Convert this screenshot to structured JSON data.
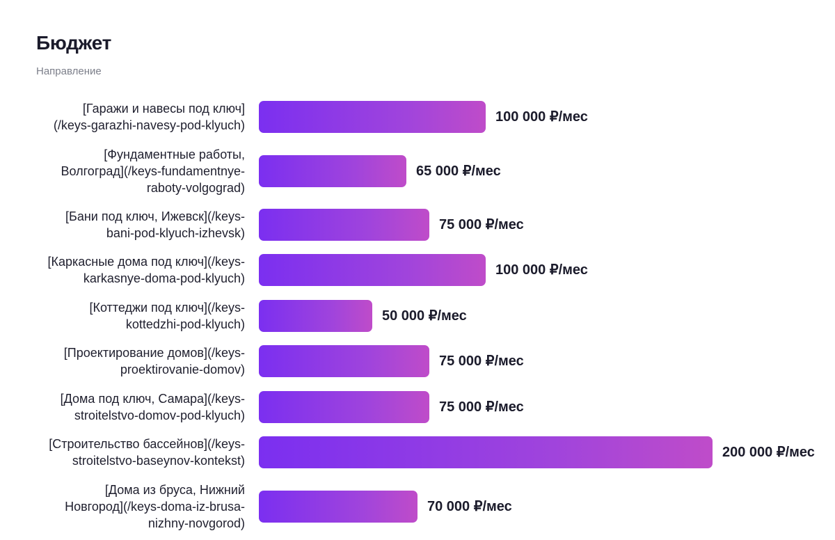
{
  "title": "Бюджет",
  "subtitle": "Направление",
  "chart_data": {
    "type": "bar",
    "orientation": "horizontal",
    "title": "Бюджет",
    "ylabel": "Направление",
    "unit": "₽/мес",
    "xlim": [
      0,
      200000
    ],
    "grid": false,
    "categories": [
      "[Гаражи и навесы под ключ](/keys-garazhi-navesy-pod-klyuch)",
      "[Фундаментные работы, Волгоград](/keys-fundamentnye-raboty-volgograd)",
      "[Бани под ключ, Ижевск](/keys-bani-pod-klyuch-izhevsk)",
      "[Каркасные дома под ключ](/keys-karkasnye-doma-pod-klyuch)",
      "[Коттеджи под ключ](/keys-kottedzhi-pod-klyuch)",
      "[Проектирование домов](/keys-proektirovanie-domov)",
      "[Дома под ключ, Самара](/keys-stroitelstvo-domov-pod-klyuch)",
      "[Строительство бассейнов](/keys-stroitelstvo-baseynov-kontekst)",
      "[Дома из бруса, Нижний Новгород](/keys-doma-iz-brusa-nizhny-novgorod)"
    ],
    "values": [
      100000,
      65000,
      75000,
      100000,
      50000,
      75000,
      75000,
      200000,
      70000
    ],
    "value_labels": [
      "100 000 ₽/мес",
      "65 000 ₽/мес",
      "75 000 ₽/мес",
      "100 000 ₽/мес",
      "50 000 ₽/мес",
      "75 000 ₽/мес",
      "75 000 ₽/мес",
      "200 000 ₽/мес",
      "70 000 ₽/мес"
    ],
    "bar_color_start": "#7b2ff0",
    "bar_color_end": "#bf4cc9"
  }
}
